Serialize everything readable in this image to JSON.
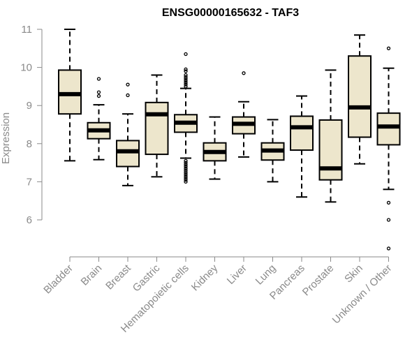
{
  "chart_data": {
    "type": "boxplot",
    "title": "ENSG00000165632 - TAF3",
    "xlabel": "",
    "ylabel": "Expression",
    "ylim": [
      5.0,
      11.1
    ],
    "yticks": [
      6,
      7,
      8,
      9,
      10,
      11
    ],
    "colors": {
      "box_fill": "#ede6cc",
      "median": "#000000",
      "axis": "#8a8a8a"
    },
    "categories": [
      "Bladder",
      "Brain",
      "Breast",
      "Gastric",
      "Hematopoietic cells",
      "Kidney",
      "Liver",
      "Lung",
      "Pancreas",
      "Prostate",
      "Skin",
      "Unknown / Other"
    ],
    "boxes": [
      {
        "category": "Bladder",
        "whisker_low": 7.55,
        "q1": 8.78,
        "median": 9.3,
        "q3": 9.93,
        "whisker_high": 11.0,
        "outliers": []
      },
      {
        "category": "Brain",
        "whisker_low": 7.58,
        "q1": 8.13,
        "median": 8.35,
        "q3": 8.55,
        "whisker_high": 9.02,
        "outliers": [
          9.25,
          9.35,
          9.7
        ]
      },
      {
        "category": "Breast",
        "whisker_low": 6.9,
        "q1": 7.4,
        "median": 7.8,
        "q3": 8.08,
        "whisker_high": 8.78,
        "outliers": [
          9.27,
          9.55
        ]
      },
      {
        "category": "Gastric",
        "whisker_low": 7.13,
        "q1": 7.72,
        "median": 8.77,
        "q3": 9.08,
        "whisker_high": 9.8,
        "outliers": []
      },
      {
        "category": "Hematopoietic cells",
        "whisker_low": 7.62,
        "q1": 8.3,
        "median": 8.55,
        "q3": 8.76,
        "whisker_high": 9.45,
        "outliers": [
          9.5,
          9.55,
          9.6,
          9.65,
          9.7,
          9.75,
          9.8,
          9.9,
          9.95,
          10.35,
          7.55,
          7.5,
          7.45,
          7.4,
          7.35,
          7.3,
          7.25,
          7.2,
          7.15,
          7.1,
          7.05,
          7.0
        ]
      },
      {
        "category": "Kidney",
        "whisker_low": 7.07,
        "q1": 7.55,
        "median": 7.78,
        "q3": 8.02,
        "whisker_high": 8.7,
        "outliers": []
      },
      {
        "category": "Liver",
        "whisker_low": 7.65,
        "q1": 8.26,
        "median": 8.52,
        "q3": 8.7,
        "whisker_high": 9.1,
        "outliers": [
          9.85
        ]
      },
      {
        "category": "Lung",
        "whisker_low": 7.0,
        "q1": 7.57,
        "median": 7.82,
        "q3": 8.02,
        "whisker_high": 8.63,
        "outliers": []
      },
      {
        "category": "Pancreas",
        "whisker_low": 6.6,
        "q1": 7.83,
        "median": 8.43,
        "q3": 8.72,
        "whisker_high": 9.25,
        "outliers": []
      },
      {
        "category": "Prostate",
        "whisker_low": 6.47,
        "q1": 7.05,
        "median": 7.35,
        "q3": 8.62,
        "whisker_high": 9.93,
        "outliers": []
      },
      {
        "category": "Skin",
        "whisker_low": 7.47,
        "q1": 8.17,
        "median": 8.95,
        "q3": 10.3,
        "whisker_high": 10.85,
        "outliers": []
      },
      {
        "category": "Unknown / Other",
        "whisker_low": 6.8,
        "q1": 7.97,
        "median": 8.45,
        "q3": 8.8,
        "whisker_high": 9.98,
        "outliers": [
          10.5,
          6.45,
          6.0,
          5.25
        ]
      }
    ]
  }
}
